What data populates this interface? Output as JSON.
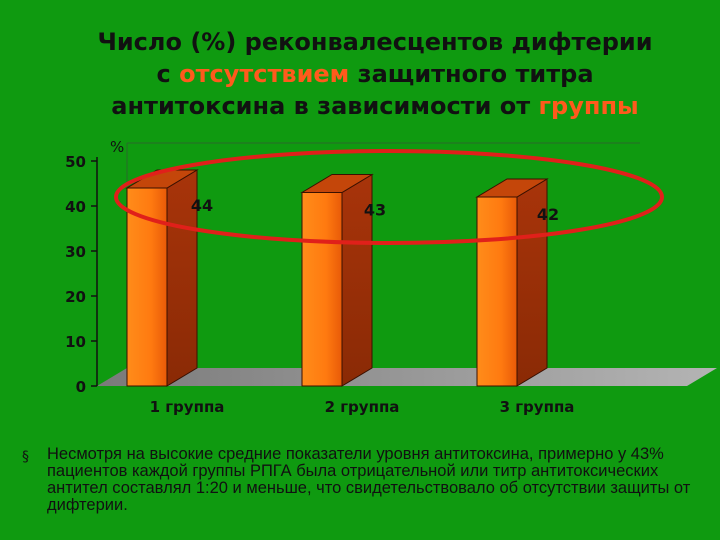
{
  "slide": {
    "title_parts": [
      {
        "text": "Число (%) реконвалесцентов дифтерии",
        "accent": false
      },
      {
        "text": "с ",
        "accent": false,
        "break_before": true
      },
      {
        "text": "отсутствием",
        "accent": true
      },
      {
        "text": " защитного титра",
        "accent": false
      },
      {
        "text": "антитоксина в зависимости от ",
        "accent": false,
        "break_before": true
      },
      {
        "text": "группы",
        "accent": true
      }
    ],
    "bullet_glyph": "§",
    "bullet_text": "Несмотря на высокие средние показатели уровня антитоксина, примерно у 43% пациентов каждой группы РПГА была отрицательной или титр антитоксических антител составлял 1:20 и меньше, что свидетельствовало об отсутствии защиты от дифтерии."
  },
  "colors": {
    "background": "#0f9a10",
    "bar_front": "#ff7a10",
    "bar_side": "#8a2a05",
    "bar_top": "#c4460a",
    "accent_text": "#ff5a1c",
    "highlight_ellipse": "#e0201a"
  },
  "chart_data": {
    "type": "bar",
    "style": "3d",
    "categories": [
      "1 группа",
      "2 группа",
      "3 группа"
    ],
    "values": [
      44,
      43,
      42
    ],
    "data_labels": [
      "44",
      "43",
      "42"
    ],
    "ylabel": "%",
    "yticks": [
      0,
      10,
      20,
      30,
      40,
      50
    ],
    "ylim": [
      0,
      50
    ],
    "grid": false,
    "legend": "none",
    "annotation": "red ellipse around bar tops"
  }
}
